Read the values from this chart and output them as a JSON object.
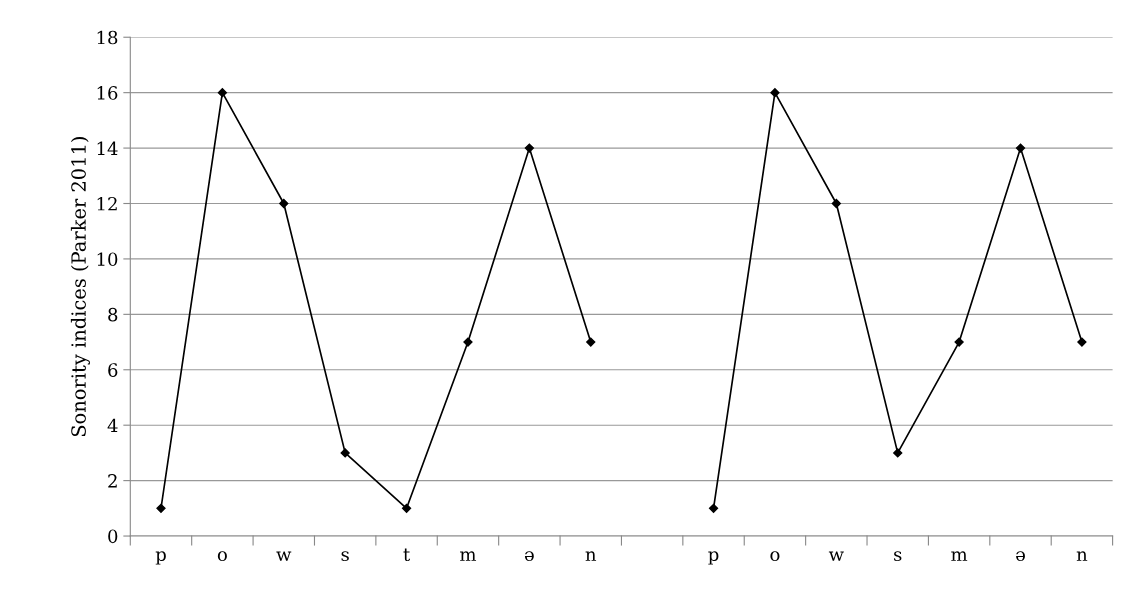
{
  "chart_data": {
    "type": "line",
    "ylabel": "Sonority indices (Parker 2011)",
    "categories": [
      "p",
      "o",
      "w",
      "s",
      "t",
      "m",
      "ə",
      "n",
      null,
      "p",
      "o",
      "w",
      "s",
      "m",
      "ə",
      "n"
    ],
    "series": [
      {
        "color": "#000000",
        "values": [
          1,
          16,
          12,
          3,
          1,
          7,
          14,
          7,
          null,
          1,
          16,
          12,
          3,
          7,
          14,
          7
        ]
      }
    ],
    "ylim": [
      0,
      18
    ],
    "yticks": [
      0,
      2,
      4,
      6,
      8,
      10,
      12,
      14,
      16,
      18
    ],
    "grid": "y",
    "marker": "diamond",
    "line_style": "solid"
  }
}
